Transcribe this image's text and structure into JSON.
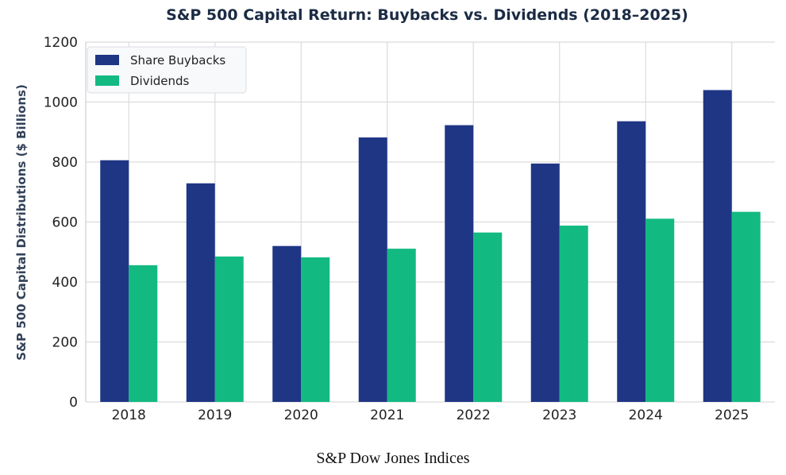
{
  "chart_data": {
    "type": "bar",
    "title": "S&P 500 Capital Return: Buybacks vs. Dividends (2018–2025)",
    "xlabel": "",
    "ylabel": "S&P 500 Capital Distributions ($ Billions)",
    "categories": [
      "2018",
      "2019",
      "2020",
      "2021",
      "2022",
      "2023",
      "2024",
      "2025"
    ],
    "series": [
      {
        "name": "Share Buybacks",
        "color": "#1f3685",
        "values": [
          806,
          729,
          520,
          882,
          923,
          795,
          936,
          1040
        ]
      },
      {
        "name": "Dividends",
        "color": "#12ba82",
        "values": [
          456,
          485,
          482,
          511,
          565,
          588,
          611,
          634
        ]
      }
    ],
    "ylim": [
      0,
      1200
    ],
    "yticks": [
      0,
      200,
      400,
      600,
      800,
      1000,
      1200
    ],
    "grid": true,
    "legend_position": "top-left"
  },
  "source": "S&P Dow Jones Indices"
}
